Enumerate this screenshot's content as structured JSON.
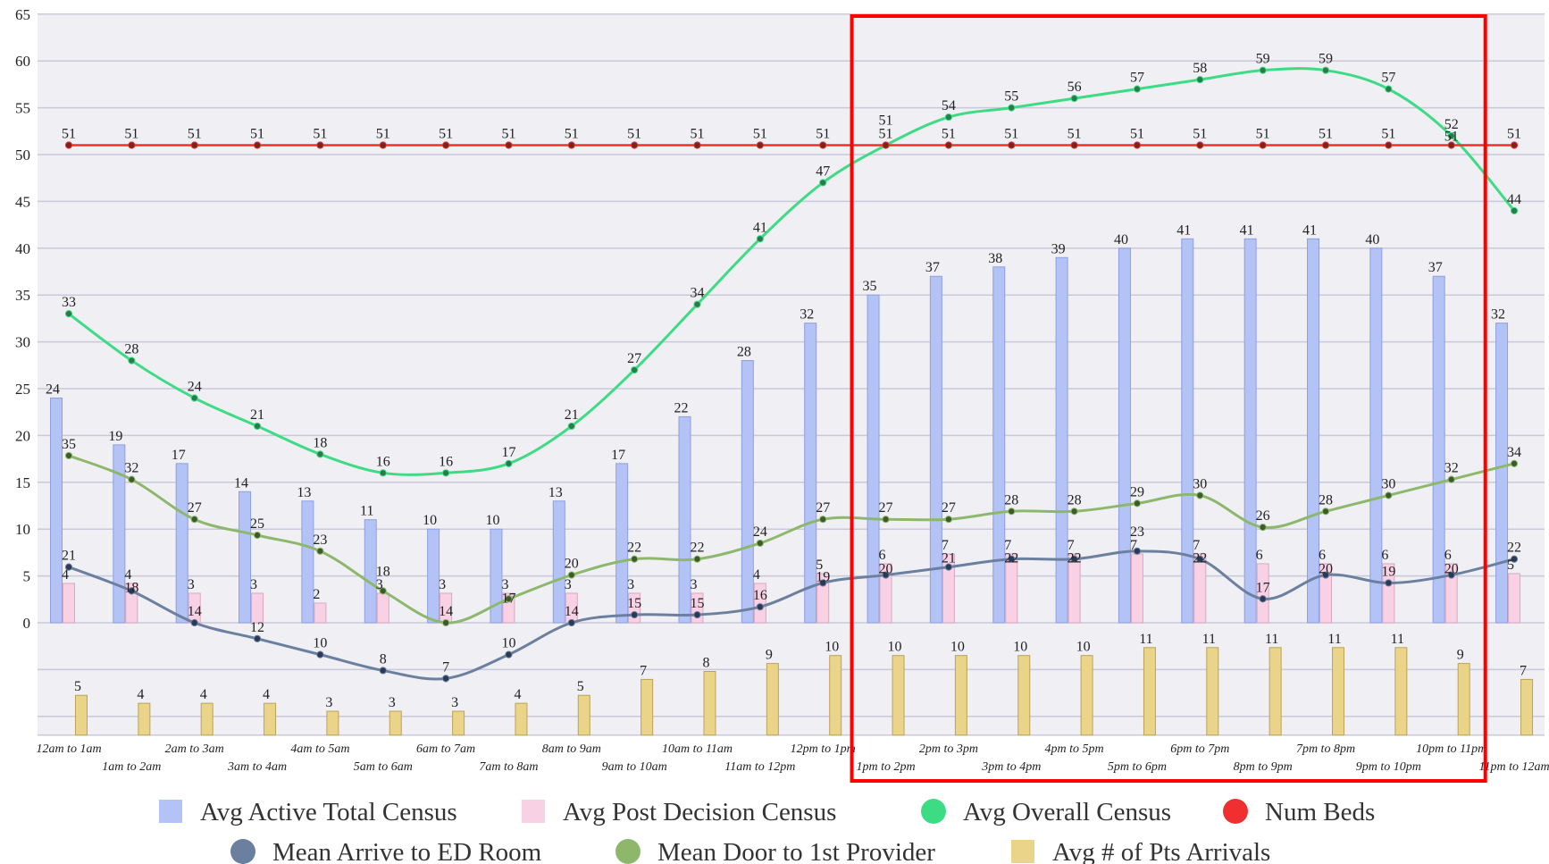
{
  "chart_data": {
    "type": "bar",
    "title": "",
    "xlabel": "",
    "ylabel": "",
    "ylim": [
      -12,
      65
    ],
    "yticks": [
      "0",
      "5",
      "10",
      "15",
      "20",
      "25",
      "30",
      "35",
      "40",
      "45",
      "50",
      "55",
      "60",
      "65"
    ],
    "grid": true,
    "legend_position": "bottom",
    "categories": [
      "12am to 1am",
      "1am to 2am",
      "2am to 3am",
      "3am to 4am",
      "4am to 5am",
      "5am to 6am",
      "6am to 7am",
      "7am to 8am",
      "8am to 9am",
      "9am to 10am",
      "10am to 11am",
      "11am to 12pm",
      "12pm to 1pm",
      "1pm to 2pm",
      "2pm to 3pm",
      "3pm to 4pm",
      "4pm to 5pm",
      "5pm to 6pm",
      "6pm to 7pm",
      "8pm to 9pm",
      "7pm to 8pm",
      "9pm to 10pm",
      "10pm to 11pm",
      "11pm to 12am"
    ],
    "series": [
      {
        "name": "Avg Active Total Census",
        "type": "bar",
        "color": "#b3c3f5",
        "values": [
          24,
          19,
          17,
          14,
          13,
          11,
          10,
          10,
          13,
          17,
          22,
          28,
          32,
          35,
          37,
          38,
          39,
          40,
          41,
          41,
          41,
          40,
          37,
          32
        ]
      },
      {
        "name": "Avg Post Decision Census",
        "type": "bar",
        "color": "#f8d2e4",
        "values": [
          4,
          4,
          3,
          3,
          2,
          3,
          3,
          3,
          3,
          3,
          3,
          4,
          5,
          6,
          7,
          7,
          7,
          7,
          7,
          6,
          6,
          6,
          6,
          5
        ]
      },
      {
        "name": "Avg Overall Census",
        "type": "line",
        "color": "#3ddc84",
        "values": [
          33,
          28,
          24,
          21,
          18,
          16,
          16,
          17,
          21,
          27,
          34,
          41,
          47,
          51,
          54,
          55,
          56,
          57,
          58,
          59,
          59,
          57,
          52,
          44
        ]
      },
      {
        "name": "Num Beds",
        "type": "line",
        "color": "#f03030",
        "values": [
          51,
          51,
          51,
          51,
          51,
          51,
          51,
          51,
          51,
          51,
          51,
          51,
          51,
          51,
          51,
          51,
          51,
          51,
          51,
          51,
          51,
          51,
          51,
          51
        ]
      },
      {
        "name": "Mean Arrive to ED Room",
        "type": "line",
        "color": "#6b7f9e",
        "values": [
          21,
          18,
          14,
          12,
          10,
          8,
          7,
          10,
          14,
          15,
          15,
          16,
          19,
          20,
          21,
          22,
          22,
          23,
          22,
          17,
          20,
          19,
          20,
          22
        ]
      },
      {
        "name": "Mean Door to 1st Provider",
        "type": "line",
        "color": "#8db86c",
        "values": [
          35,
          32,
          27,
          25,
          23,
          18,
          14,
          17,
          20,
          22,
          22,
          24,
          27,
          27,
          27,
          28,
          28,
          29,
          30,
          26,
          28,
          30,
          32,
          34
        ]
      },
      {
        "name": "Avg # of Pts Arrivals",
        "type": "bar",
        "color": "#ead48a",
        "values": [
          5,
          4,
          4,
          4,
          3,
          3,
          3,
          4,
          5,
          7,
          8,
          9,
          10,
          10,
          10,
          10,
          10,
          11,
          11,
          11,
          11,
          11,
          9,
          7
        ]
      }
    ],
    "highlight": {
      "from": "1pm to 2pm",
      "to": "10pm to 11pm",
      "color": "#ff0000"
    }
  }
}
